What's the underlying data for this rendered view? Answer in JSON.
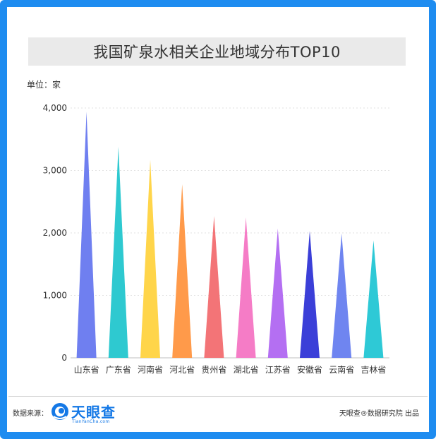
{
  "header": {
    "title": "我国矿泉水相关企业地域分布TOP10"
  },
  "unit_label": "单位：家",
  "footer": {
    "source_label": "数据来源：",
    "logo_text": "天眼查",
    "logo_subtext": "TianYanCha.com",
    "publisher": "天眼查®数据研究院 出品"
  },
  "colors": {
    "frame": "#1e8cf0",
    "brand": "#1478e6"
  },
  "chart_data": {
    "type": "bar",
    "title": "我国矿泉水相关企业地域分布TOP10",
    "ylabel": "单位：家",
    "xlabel": "",
    "ylim": [
      0,
      4000
    ],
    "yticks": [
      0,
      1000,
      2000,
      3000,
      4000
    ],
    "ytick_labels": [
      "0",
      "1,000",
      "2,000",
      "3,000",
      "4,000"
    ],
    "grid": true,
    "categories": [
      "山东省",
      "广东省",
      "河南省",
      "河北省",
      "贵州省",
      "湖北省",
      "江苏省",
      "安徽省",
      "云南省",
      "吉林省"
    ],
    "values": [
      3940,
      3380,
      3170,
      2780,
      2270,
      2250,
      2070,
      2030,
      1990,
      1880
    ],
    "colors": [
      "#6f7ff0",
      "#2ec9d0",
      "#ffd54a",
      "#ff9a4a",
      "#f37477",
      "#f57cc6",
      "#b46ff2",
      "#3b3fd8",
      "#6f85f0",
      "#2ec9d6"
    ]
  }
}
